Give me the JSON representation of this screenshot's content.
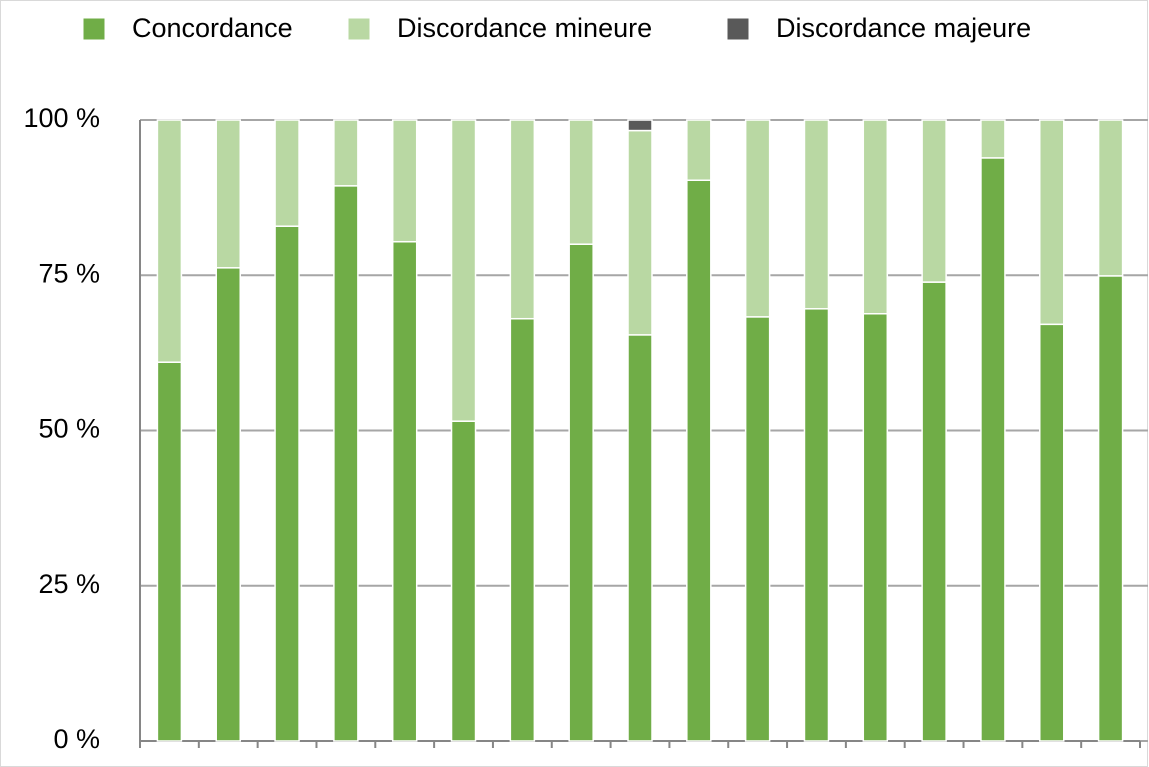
{
  "chart_data": {
    "type": "stacked_bar",
    "categories": [
      null,
      null,
      null,
      null,
      null,
      null,
      null,
      null,
      null,
      null,
      null,
      null,
      null,
      null,
      null,
      null,
      null
    ],
    "series": [
      {
        "name": "Concordance",
        "color": "#70ad47",
        "values": [
          61,
          76.2,
          82.9,
          89.4,
          80.4,
          51.5,
          68,
          80,
          65.4,
          90.3,
          68.3,
          69.6,
          68.8,
          73.9,
          93.9,
          67.1,
          74.9
        ]
      },
      {
        "name": "Discordance mineure",
        "color": "#b9d8a3",
        "values": [
          39,
          23.8,
          17.1,
          10.6,
          19.6,
          48.5,
          32,
          20,
          32.9,
          9.7,
          31.7,
          30.4,
          31.2,
          26.1,
          6.1,
          32.9,
          25.1
        ]
      },
      {
        "name": "Discordance majeure",
        "color": "#595959",
        "values": [
          0,
          0,
          0,
          0,
          0,
          0,
          0,
          0,
          1.7,
          0,
          0,
          0,
          0,
          0,
          0,
          0,
          0
        ]
      }
    ],
    "ylim": [
      0,
      100
    ],
    "yticks": [
      {
        "value": 0,
        "label": "0 %"
      },
      {
        "value": 25,
        "label": "25 %"
      },
      {
        "value": 50,
        "label": "50 %"
      },
      {
        "value": 75,
        "label": "75 %"
      },
      {
        "value": 100,
        "label": "100 %"
      }
    ],
    "grid": true,
    "legend": "top"
  }
}
